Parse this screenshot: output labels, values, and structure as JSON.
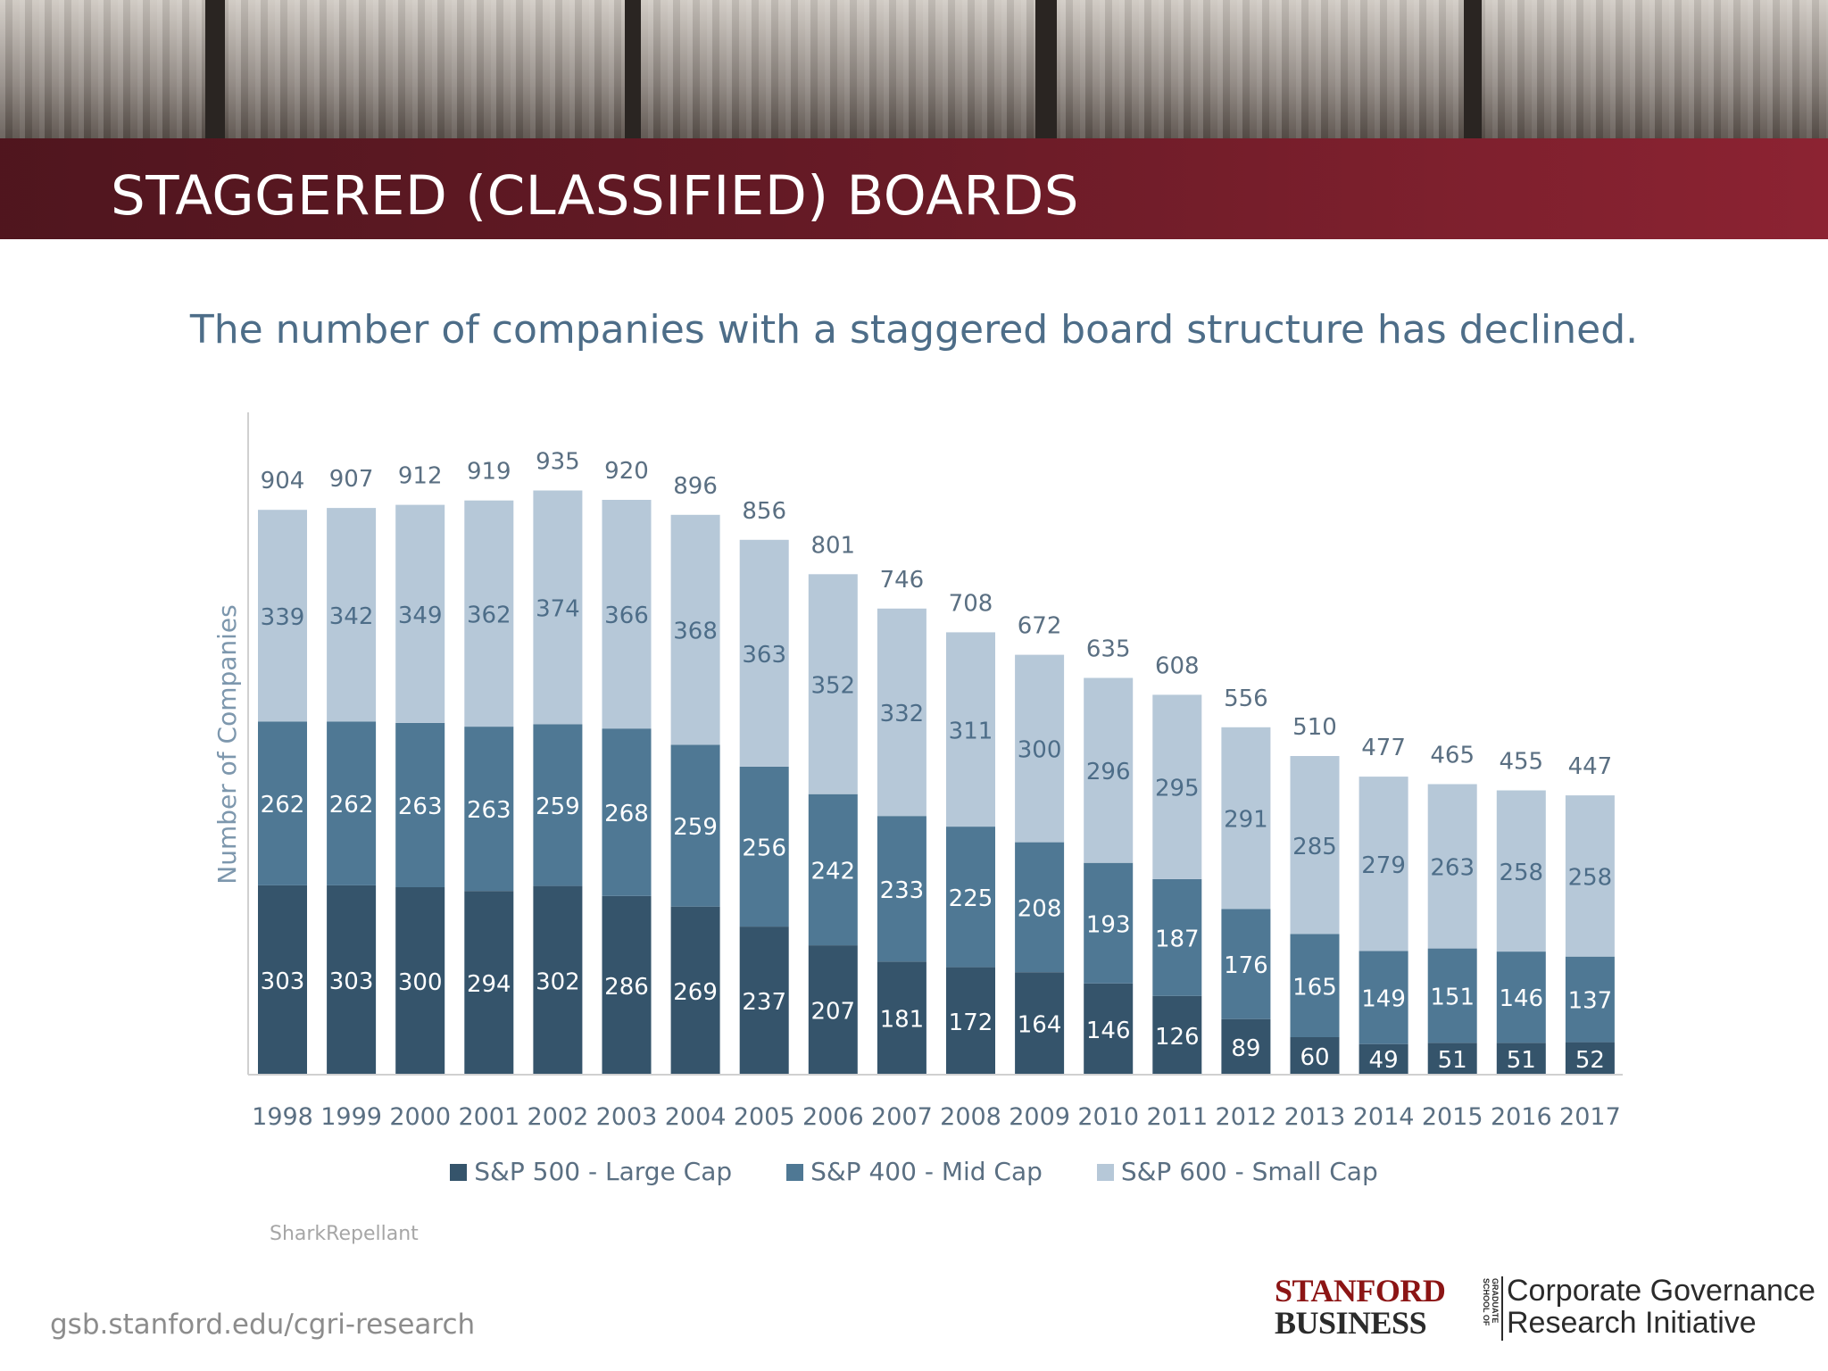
{
  "banner": {
    "title": "STAGGERED (CLASSIFIED) BOARDS"
  },
  "subtitle": "The number of companies with a staggered board structure has declined.",
  "source": "SharkRepellant",
  "footer": {
    "url": "gsb.stanford.edu/cgri-research",
    "logo_line1": "STANFORD",
    "logo_line2": "BUSINESS",
    "logo_vertical": "GRADUATE SCHOOL OF",
    "logo_org_line1": "Corporate Governance",
    "logo_org_line2": "Research Initiative"
  },
  "colors": {
    "large_cap": "#35546b",
    "mid_cap": "#4f7894",
    "small_cap": "#b6c8d8",
    "brand_red": "#8c2332"
  },
  "chart_data": {
    "type": "bar",
    "stacked": true,
    "title": "",
    "xlabel": "",
    "ylabel": "Number of Companies",
    "ylim": [
      0,
      1000
    ],
    "grid": false,
    "legend": "bottom",
    "categories": [
      "1998",
      "1999",
      "2000",
      "2001",
      "2002",
      "2003",
      "2004",
      "2005",
      "2006",
      "2007",
      "2008",
      "2009",
      "2010",
      "2011",
      "2012",
      "2013",
      "2014",
      "2015",
      "2016",
      "2017"
    ],
    "series": [
      {
        "name": "S&P 500 - Large Cap",
        "values": [
          303,
          303,
          300,
          294,
          302,
          286,
          269,
          237,
          207,
          181,
          172,
          164,
          146,
          126,
          89,
          60,
          49,
          51,
          51,
          52
        ]
      },
      {
        "name": "S&P 400 - Mid Cap",
        "values": [
          262,
          262,
          263,
          263,
          259,
          268,
          259,
          256,
          242,
          233,
          225,
          208,
          193,
          187,
          176,
          165,
          149,
          151,
          146,
          137
        ]
      },
      {
        "name": "S&P 600 - Small Cap",
        "values": [
          339,
          342,
          349,
          362,
          374,
          366,
          368,
          363,
          352,
          332,
          311,
          300,
          296,
          295,
          291,
          285,
          279,
          263,
          258,
          258
        ]
      }
    ],
    "totals": [
      904,
      907,
      912,
      919,
      935,
      920,
      896,
      856,
      801,
      746,
      708,
      672,
      635,
      608,
      556,
      510,
      477,
      465,
      455,
      447
    ]
  }
}
